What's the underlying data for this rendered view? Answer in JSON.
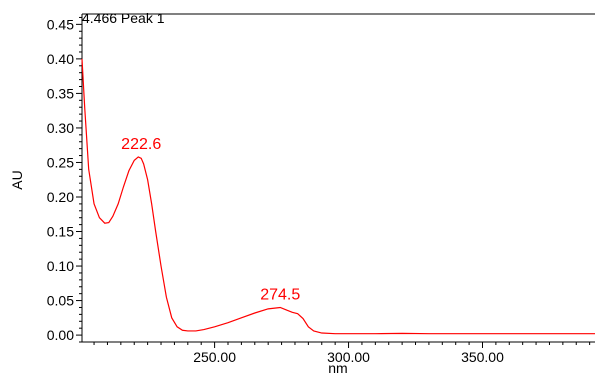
{
  "chart_data": {
    "type": "line",
    "title": "4.466 Peak 1",
    "xlabel": "nm",
    "ylabel": "AU",
    "xlim": [
      200.5,
      392
    ],
    "ylim": [
      -0.01,
      0.465
    ],
    "x_ticks": [
      250,
      300,
      350
    ],
    "x_tick_labels": [
      "250.00",
      "300.00",
      "350.00"
    ],
    "x_minor_step": 5,
    "y_ticks": [
      0.0,
      0.05,
      0.1,
      0.15,
      0.2,
      0.25,
      0.3,
      0.35,
      0.4,
      0.45
    ],
    "y_tick_labels": [
      "0.00",
      "0.05",
      "0.10",
      "0.15",
      "0.20",
      "0.25",
      "0.30",
      "0.35",
      "0.40",
      "0.45"
    ],
    "y_minor_step": 0.01,
    "grid": false,
    "line_color": "#ff0000",
    "label_color": "#ff0000",
    "series": [
      {
        "x": [
          200.5,
          201.5,
          203,
          205,
          207,
          209,
          210.5,
          212,
          214,
          216,
          218,
          220,
          221.5,
          222.6,
          223.5,
          225,
          226.5,
          228,
          230,
          232,
          234,
          236,
          238,
          240,
          243,
          246,
          250,
          255,
          260,
          265,
          270,
          274.5,
          277,
          279,
          281,
          283,
          285,
          287,
          290,
          295,
          300,
          310,
          320,
          330,
          340,
          350,
          360,
          370,
          380,
          392
        ],
        "y": [
          0.4,
          0.33,
          0.24,
          0.19,
          0.17,
          0.162,
          0.163,
          0.172,
          0.19,
          0.215,
          0.238,
          0.253,
          0.258,
          0.256,
          0.248,
          0.225,
          0.19,
          0.15,
          0.1,
          0.055,
          0.025,
          0.012,
          0.007,
          0.006,
          0.006,
          0.008,
          0.012,
          0.018,
          0.025,
          0.032,
          0.038,
          0.04,
          0.036,
          0.033,
          0.031,
          0.024,
          0.012,
          0.006,
          0.003,
          0.002,
          0.002,
          0.002,
          0.0025,
          0.002,
          0.002,
          0.002,
          0.002,
          0.002,
          0.002,
          0.002
        ]
      }
    ],
    "annotations": [
      {
        "text": "222.6",
        "x": 222.6,
        "y": 0.258
      },
      {
        "text": "274.5",
        "x": 274.5,
        "y": 0.04
      }
    ]
  }
}
